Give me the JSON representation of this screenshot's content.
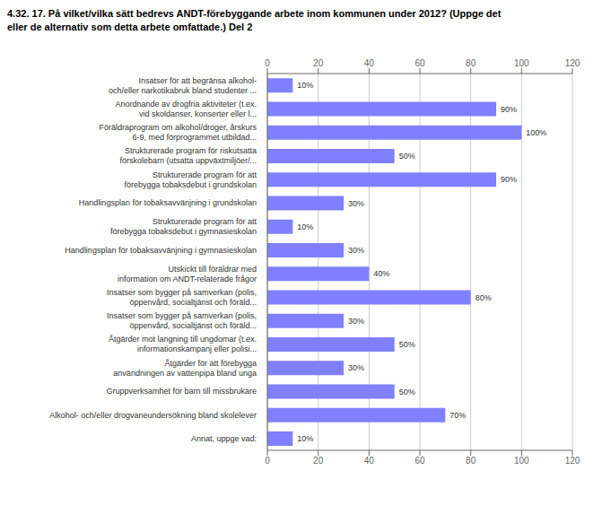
{
  "chart_data": {
    "type": "bar",
    "title": "4.32. 17. På vilket/vilka sätt bedrevs ANDT-förebyggande arbete inom kommunen under 2012? (Uppge det\neller de alternativ som detta arbete omfattade.) Del 2",
    "categories": [
      "Insatser för att begränsa alkohol-\noch/eller narkotikabruk bland studenter ...",
      "Anordnande av drogfria aktiviteter (t.ex.\nvid skoldanser, konserter eller l...",
      "Föräldraprogram om alkohol/droger, årskurs\n6-9, med förprogrammet utbildad...",
      "Strukturerade program för riskutsatta\nförskolebarn (utsatta uppväxtmiljöer/...",
      "Strukturerade program för att\nförebygga tobaksdebut i grundskolan",
      "Handlingsplan för tobaksavvänjning i grundskolan",
      "Strukturerade program för att\nförebygga tobaksdebut i gymnasieskolan",
      "Handlingsplan för tobaksavvänjning i gymnasieskolan",
      "Utskickt till föräldrar med\ninformation om ANDT-relaterade frågor",
      "Insatser som bygger på samverkan (polis,\nöppenvård, socialtjänst och föräld...",
      "Insatser som bygger på samverkan (polis,\nöppenvård, socialtjänst och föräld...",
      "Åtgärder mot langning till ungdomar (t.ex.\ninformationskampanj eller polisi...",
      "Åtgärder för att förebygga\nanvändningen av vattenpipa bland unga",
      "Gruppverksamhet för barn till missbrukare",
      "Alkohol- och/eller drogvaneundersökning bland skolelever",
      "Annat, uppge vad:"
    ],
    "values": [
      10,
      90,
      100,
      50,
      90,
      30,
      10,
      30,
      40,
      80,
      30,
      50,
      30,
      50,
      70,
      10
    ],
    "value_labels": [
      "10%",
      "90%",
      "100%",
      "50%",
      "90%",
      "30%",
      "10%",
      "30%",
      "40%",
      "80%",
      "30%",
      "50%",
      "30%",
      "50%",
      "70%",
      "10%"
    ],
    "color": "#8080ff",
    "orientation": "horizontal",
    "data_labels": true,
    "grid": true,
    "xlim": [
      0,
      120
    ],
    "xticks": [
      0,
      20,
      40,
      60,
      80,
      100,
      120
    ]
  }
}
